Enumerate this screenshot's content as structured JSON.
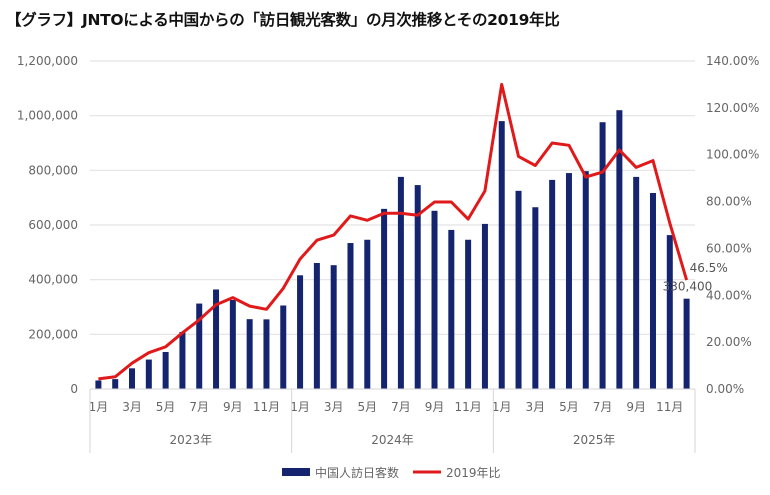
{
  "title": "【グラフ】JNTOによる中国からの「訪日観光客数」の月次推移とその2019年比",
  "chart_data": {
    "type": "bar+line",
    "title": "【グラフ】JNTOによる中国からの「訪日観光客数」の月次推移とその2019年比",
    "years": [
      "2023年",
      "2024年",
      "2025年"
    ],
    "month_tick_labels": [
      "1月",
      "3月",
      "5月",
      "7月",
      "9月",
      "11月"
    ],
    "categories": [
      "2023-01",
      "2023-02",
      "2023-03",
      "2023-04",
      "2023-05",
      "2023-06",
      "2023-07",
      "2023-08",
      "2023-09",
      "2023-10",
      "2023-11",
      "2023-12",
      "2024-01",
      "2024-02",
      "2024-03",
      "2024-04",
      "2024-05",
      "2024-06",
      "2024-07",
      "2024-08",
      "2024-09",
      "2024-10",
      "2024-11",
      "2024-12",
      "2025-01",
      "2025-02",
      "2025-03",
      "2025-04",
      "2025-05",
      "2025-06",
      "2025-07",
      "2025-08",
      "2025-09",
      "2025-10",
      "2025-11",
      "2025-12"
    ],
    "series": [
      {
        "name": "中国人訪日客数",
        "type": "bar",
        "axis": "left",
        "color": "#14246e",
        "values": [
          31200,
          36200,
          75700,
          107700,
          135400,
          208500,
          312600,
          364100,
          325600,
          255500,
          254800,
          305500,
          416000,
          461000,
          453000,
          534000,
          546000,
          659000,
          776000,
          746000,
          652000,
          582000,
          546000,
          604000,
          980000,
          725000,
          665000,
          765000,
          790000,
          797000,
          976000,
          1020000,
          776000,
          717000,
          563000,
          330400
        ]
      },
      {
        "name": "2019年比",
        "type": "line",
        "axis": "right",
        "color": "#e01a1a",
        "values": [
          4.3,
          5.2,
          11,
          15.5,
          18,
          24,
          29.5,
          36,
          39,
          35.4,
          34,
          43,
          55.5,
          63.5,
          65.7,
          73.9,
          72,
          75,
          75,
          74.2,
          79.8,
          79.8,
          72.5,
          84.5,
          130,
          99.3,
          95.4,
          105,
          104,
          90.5,
          92.6,
          102,
          94.6,
          97.5,
          70.8,
          46.5
        ]
      }
    ],
    "left_axis": {
      "ylim": [
        0,
        1200000
      ],
      "ticks": [
        "0",
        "200,000",
        "400,000",
        "600,000",
        "800,000",
        "1,000,000",
        "1,200,000"
      ]
    },
    "right_axis": {
      "ylim": [
        0,
        140
      ],
      "ticks": [
        "0.00%",
        "20.00%",
        "40.00%",
        "60.00%",
        "80.00%",
        "100.00%",
        "120.00%",
        "140.00%"
      ]
    },
    "data_labels": {
      "last_bar": "330,400",
      "last_line": "46.5%"
    },
    "grid": true,
    "legend_position": "bottom"
  }
}
